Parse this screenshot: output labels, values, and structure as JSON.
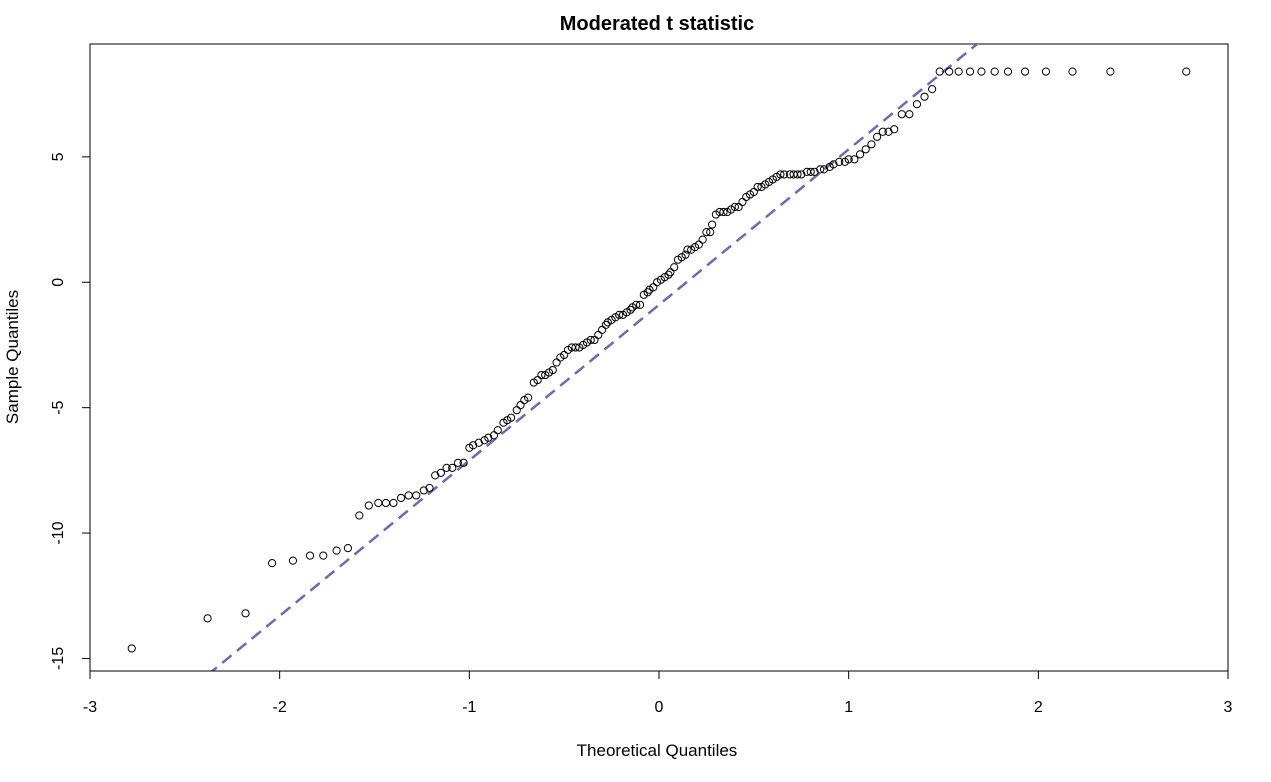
{
  "chart_data": {
    "type": "scatter",
    "title": "Moderated t statistic",
    "xlabel": "Theoretical Quantiles",
    "ylabel": "Sample Quantiles",
    "xlim": [
      -3,
      3
    ],
    "ylim": [
      -15.5,
      9.5
    ],
    "xticks": [
      -3,
      -2,
      -1,
      0,
      1,
      2,
      3
    ],
    "xtick_labels": [
      "-3",
      "-2",
      "-1",
      "0",
      "1",
      "2",
      "3"
    ],
    "yticks": [
      -15,
      -10,
      -5,
      0,
      5
    ],
    "ytick_labels": [
      "-15",
      "-10",
      "-5",
      "0",
      "5"
    ],
    "grid": false,
    "points_x": [
      -2.78,
      -2.38,
      -2.18,
      -2.04,
      -1.93,
      -1.84,
      -1.77,
      -1.7,
      -1.64,
      -1.58,
      -1.53,
      -1.48,
      -1.44,
      -1.4,
      -1.36,
      -1.32,
      -1.28,
      -1.24,
      -1.21,
      -1.18,
      -1.15,
      -1.12,
      -1.09,
      -1.06,
      -1.03,
      -1.0,
      -0.98,
      -0.95,
      -0.92,
      -0.9,
      -0.87,
      -0.85,
      -0.82,
      -0.8,
      -0.78,
      -0.75,
      -0.73,
      -0.71,
      -0.69,
      -0.66,
      -0.64,
      -0.62,
      -0.6,
      -0.58,
      -0.56,
      -0.54,
      -0.52,
      -0.5,
      -0.48,
      -0.46,
      -0.44,
      -0.42,
      -0.4,
      -0.38,
      -0.36,
      -0.34,
      -0.32,
      -0.3,
      -0.28,
      -0.27,
      -0.25,
      -0.23,
      -0.21,
      -0.19,
      -0.17,
      -0.15,
      -0.14,
      -0.12,
      -0.1,
      -0.08,
      -0.06,
      -0.05,
      -0.03,
      -0.01,
      0.01,
      0.03,
      0.05,
      0.06,
      0.08,
      0.1,
      0.12,
      0.14,
      0.15,
      0.17,
      0.19,
      0.21,
      0.23,
      0.25,
      0.27,
      0.28,
      0.3,
      0.32,
      0.34,
      0.36,
      0.38,
      0.4,
      0.42,
      0.44,
      0.46,
      0.48,
      0.5,
      0.52,
      0.54,
      0.56,
      0.58,
      0.6,
      0.62,
      0.64,
      0.66,
      0.69,
      0.71,
      0.73,
      0.75,
      0.78,
      0.8,
      0.82,
      0.85,
      0.87,
      0.9,
      0.92,
      0.95,
      0.98,
      1.0,
      1.03,
      1.06,
      1.09,
      1.12,
      1.15,
      1.18,
      1.21,
      1.24,
      1.28,
      1.32,
      1.36,
      1.4,
      1.44,
      1.48,
      1.53,
      1.58,
      1.64,
      1.7,
      1.77,
      1.84,
      1.93,
      2.04,
      2.18,
      2.38,
      2.78
    ],
    "points_y": [
      -14.6,
      -13.4,
      -13.2,
      -11.2,
      -11.1,
      -10.9,
      -10.9,
      -10.7,
      -10.6,
      -9.3,
      -8.9,
      -8.8,
      -8.8,
      -8.8,
      -8.6,
      -8.5,
      -8.5,
      -8.3,
      -8.2,
      -7.7,
      -7.6,
      -7.4,
      -7.4,
      -7.2,
      -7.2,
      -6.6,
      -6.5,
      -6.4,
      -6.3,
      -6.2,
      -6.1,
      -5.9,
      -5.6,
      -5.5,
      -5.4,
      -5.1,
      -4.9,
      -4.7,
      -4.6,
      -4.0,
      -3.9,
      -3.7,
      -3.7,
      -3.6,
      -3.5,
      -3.2,
      -3.0,
      -2.9,
      -2.7,
      -2.6,
      -2.6,
      -2.6,
      -2.5,
      -2.4,
      -2.3,
      -2.3,
      -2.1,
      -1.9,
      -1.7,
      -1.6,
      -1.5,
      -1.4,
      -1.3,
      -1.3,
      -1.2,
      -1.1,
      -1.0,
      -0.9,
      -0.9,
      -0.5,
      -0.4,
      -0.3,
      -0.2,
      0.0,
      0.1,
      0.2,
      0.3,
      0.4,
      0.6,
      0.9,
      1.0,
      1.1,
      1.3,
      1.3,
      1.4,
      1.5,
      1.7,
      2.0,
      2.0,
      2.3,
      2.7,
      2.8,
      2.8,
      2.8,
      2.9,
      3.0,
      3.0,
      3.2,
      3.4,
      3.5,
      3.6,
      3.8,
      3.8,
      3.9,
      4.0,
      4.1,
      4.2,
      4.3,
      4.3,
      4.3,
      4.3,
      4.3,
      4.3,
      4.4,
      4.4,
      4.4,
      4.5,
      4.5,
      4.6,
      4.7,
      4.8,
      4.8,
      4.9,
      4.9,
      5.1,
      5.3,
      5.5,
      5.8,
      6.0,
      6.0,
      6.1,
      6.7,
      6.7,
      7.1,
      7.4,
      7.7,
      8.4,
      8.4,
      8.4,
      8.4,
      8.4,
      8.4,
      8.4,
      8.4,
      8.4,
      8.4,
      8.4,
      8.4
    ],
    "reference_line": {
      "intercept": -0.9,
      "slope": 6.2,
      "style": "dashed",
      "color": "#6b6bb0"
    },
    "point_color": "#000000"
  }
}
